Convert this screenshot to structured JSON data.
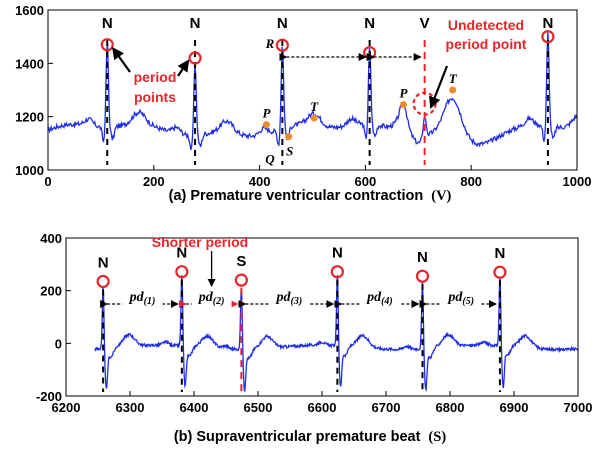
{
  "colors": {
    "signal": "#1f2ee6",
    "highlight": "#e8262a",
    "wave_point": "#f08a2a",
    "text": "#000000"
  },
  "chart_data": [
    {
      "type": "line",
      "caption": "(a) Premature ventricular contraction",
      "caption_tag": "(V)",
      "xlim": [
        0,
        1000
      ],
      "ylim": [
        1000,
        1600
      ],
      "xticks": [
        0,
        200,
        400,
        600,
        800,
        1000
      ],
      "yticks": [
        1000,
        1200,
        1400,
        1600
      ],
      "beats": [
        {
          "label": "N",
          "x": 112,
          "peak": 1470,
          "detected": true
        },
        {
          "label": "N",
          "x": 278,
          "peak": 1420,
          "detected": true
        },
        {
          "label": "N",
          "x": 443,
          "peak": 1468,
          "detected": true
        },
        {
          "label": "N",
          "x": 608,
          "peak": 1440,
          "detected": true
        },
        {
          "label": "V",
          "x": 712,
          "peak": 1230,
          "detected": false
        },
        {
          "label": "N",
          "x": 945,
          "peak": 1500,
          "detected": true
        }
      ],
      "wave_points": [
        {
          "label": "P",
          "x": 413,
          "y": 1170
        },
        {
          "label": "Q",
          "x": 436,
          "y": 1095
        },
        {
          "label": "R",
          "x": 443,
          "y": 1468
        },
        {
          "label": "S",
          "x": 455,
          "y": 1125
        },
        {
          "label": "T",
          "x": 503,
          "y": 1195
        },
        {
          "label": "P",
          "x": 672,
          "y": 1245
        },
        {
          "label": "T",
          "x": 765,
          "y": 1300
        }
      ],
      "annotations": {
        "period_points": "period\npoints",
        "undetected": "Undetected\nperiod point"
      }
    },
    {
      "type": "line",
      "caption": "(b) Supraventricular premature beat",
      "caption_tag": "(S)",
      "xlim": [
        6200,
        7000
      ],
      "ylim": [
        -200,
        400
      ],
      "xticks": [
        6200,
        6300,
        6400,
        6500,
        6600,
        6700,
        6800,
        6900,
        7000
      ],
      "yticks": [
        -200,
        0,
        200,
        400
      ],
      "beats": [
        {
          "label": "N",
          "x": 6258,
          "peak": 235
        },
        {
          "label": "N",
          "x": 6381,
          "peak": 272
        },
        {
          "label": "S",
          "x": 6474,
          "peak": 240
        },
        {
          "label": "N",
          "x": 6624,
          "peak": 272
        },
        {
          "label": "N",
          "x": 6757,
          "peak": 255
        },
        {
          "label": "N",
          "x": 6878,
          "peak": 270
        }
      ],
      "periods": [
        {
          "base": "pd",
          "sub": "(1)",
          "shorter": false
        },
        {
          "base": "pd",
          "sub": "(2)",
          "shorter": true
        },
        {
          "base": "pd",
          "sub": "(3)",
          "shorter": false
        },
        {
          "base": "pd",
          "sub": "(4)",
          "shorter": false
        },
        {
          "base": "pd",
          "sub": "(5)",
          "shorter": false
        }
      ],
      "annotations": {
        "shorter_period": "Shorter period"
      }
    }
  ]
}
